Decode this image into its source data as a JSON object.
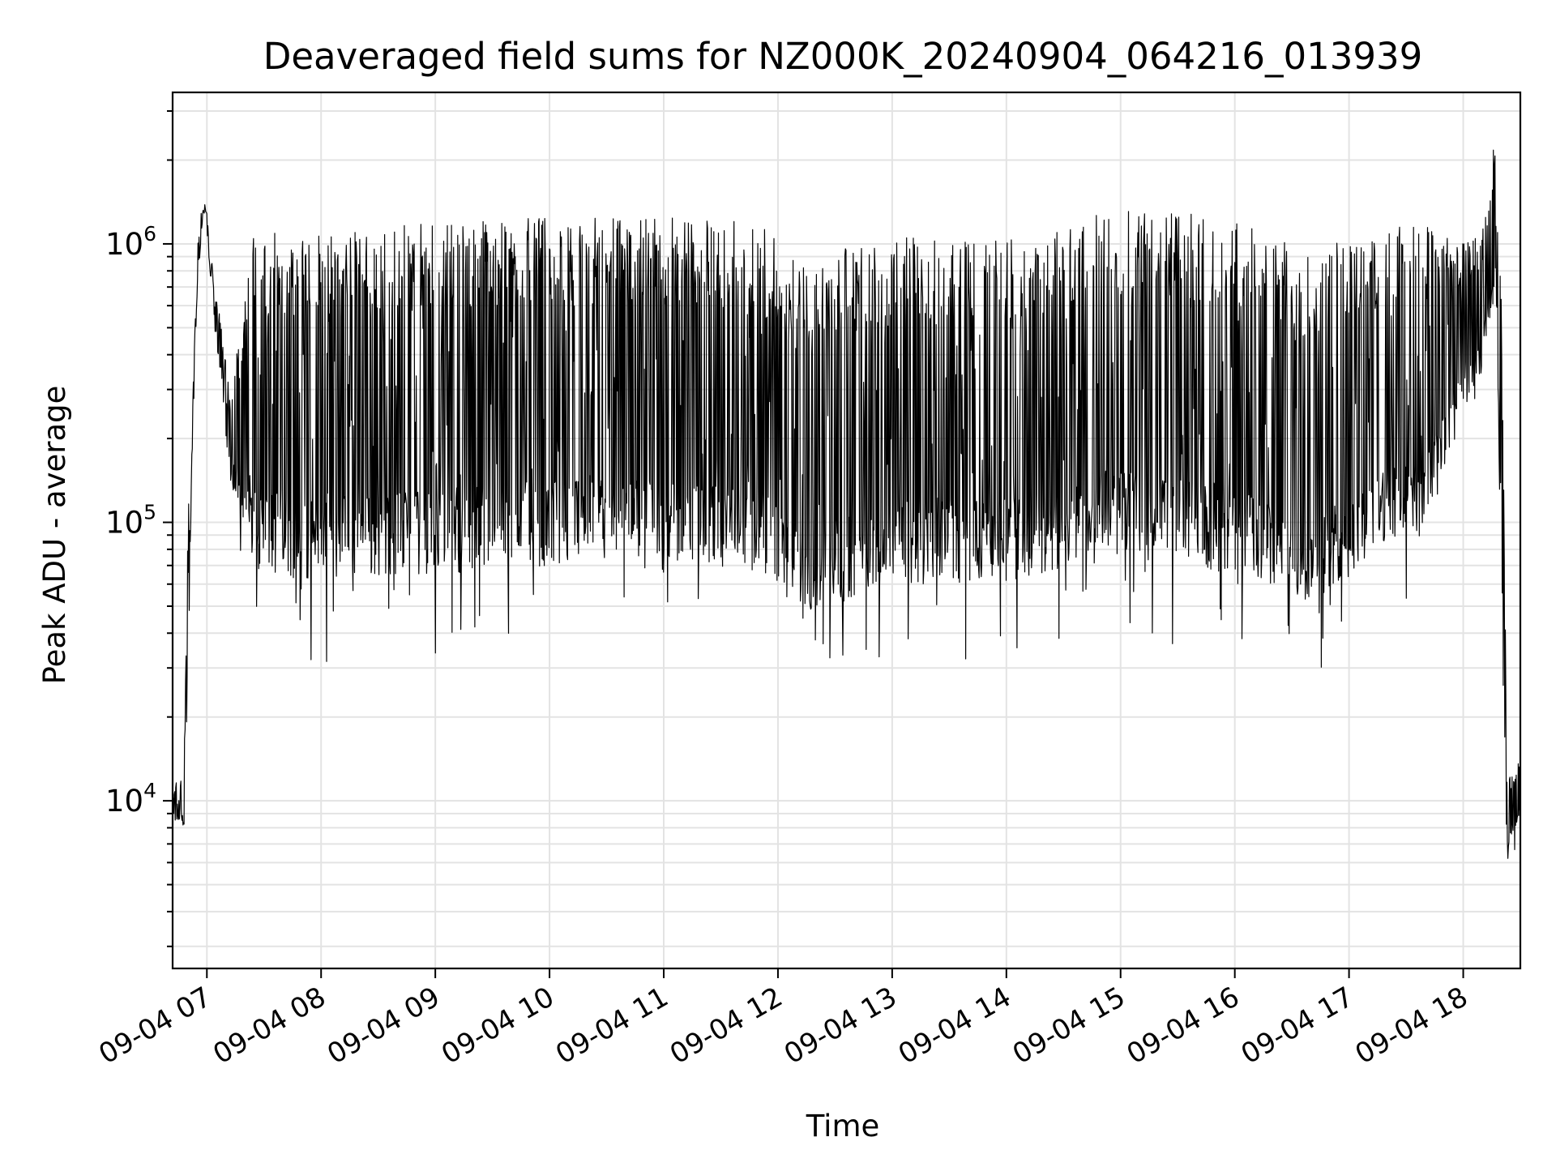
{
  "chart_data": {
    "type": "line",
    "title": "Deaveraged field sums for NZ000K_20240904_064216_013939",
    "xlabel": "Time",
    "ylabel": "Peak ADU - average",
    "yscale": "log",
    "grid": true,
    "xlim": [
      "2024-09-04 06:42",
      "2024-09-04 18:30"
    ],
    "ylim": [
      2500,
      3500000
    ],
    "x_ticks": [
      "09-04 07",
      "09-04 08",
      "09-04 09",
      "09-04 10",
      "09-04 11",
      "09-04 12",
      "09-04 13",
      "09-04 14",
      "09-04 15",
      "09-04 16",
      "09-04 17",
      "09-04 18"
    ],
    "y_ticks": [
      {
        "base": "10",
        "exp": "4",
        "value": 10000
      },
      {
        "base": "10",
        "exp": "5",
        "value": 100000
      },
      {
        "base": "10",
        "exp": "6",
        "value": 1000000
      }
    ],
    "series": [
      {
        "color": "#000000",
        "x": [
          "2024-09-04 06:42",
          "2024-09-04 06:48",
          "2024-09-04 06:50",
          "2024-09-04 06:52",
          "2024-09-04 06:55",
          "2024-09-04 06:58",
          "2024-09-04 07:00",
          "2024-09-04 07:04",
          "2024-09-04 07:08",
          "2024-09-04 07:12",
          "2024-09-04 07:18",
          "2024-09-04 07:24",
          "2024-09-04 08:00",
          "2024-09-04 09:00",
          "2024-09-04 10:00",
          "2024-09-04 11:00",
          "2024-09-04 11:50",
          "2024-09-04 12:10",
          "2024-09-04 13:00",
          "2024-09-04 14:00",
          "2024-09-04 15:00",
          "2024-09-04 16:00",
          "2024-09-04 16:40",
          "2024-09-04 17:20",
          "2024-09-04 17:40",
          "2024-09-04 18:00",
          "2024-09-04 18:10",
          "2024-09-04 18:17",
          "2024-09-04 18:20",
          "2024-09-04 18:23",
          "2024-09-04 18:30"
        ],
        "low": [
          8500,
          8000,
          20000,
          150000,
          700000,
          1300000,
          1100000,
          500000,
          300000,
          140000,
          110000,
          65000,
          62000,
          65000,
          70000,
          70000,
          65000,
          45000,
          60000,
          60000,
          75000,
          65000,
          50000,
          85000,
          90000,
          250000,
          350000,
          700000,
          50000,
          6000,
          9000
        ],
        "high": [
          11000,
          14000,
          100000,
          200000,
          1000000,
          1500000,
          1300000,
          700000,
          500000,
          300000,
          500000,
          1100000,
          1100000,
          1200000,
          1250000,
          1250000,
          1200000,
          850000,
          1100000,
          1050000,
          1350000,
          1250000,
          950000,
          1150000,
          1200000,
          1000000,
          1100000,
          2500000,
          800000,
          12000,
          14000
        ]
      }
    ]
  }
}
